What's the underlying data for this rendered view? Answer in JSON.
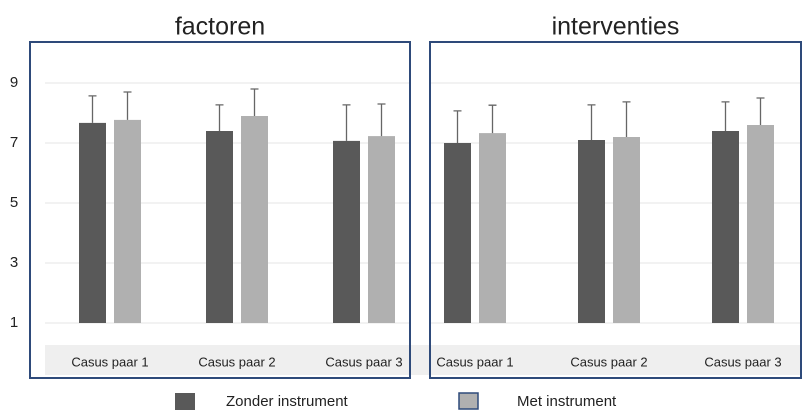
{
  "chart_data": [
    {
      "type": "bar",
      "title": "factoren",
      "categories": [
        "Casus paar 1",
        "Casus paar 2",
        "Casus paar 3"
      ],
      "series": [
        {
          "name": "Zonder instrument",
          "color": "#595959",
          "values": [
            7.67,
            7.4,
            7.07
          ],
          "errors": [
            0.9,
            0.87,
            1.2
          ]
        },
        {
          "name": "Met instrument",
          "color": "#b0b0b0",
          "values": [
            7.77,
            7.9,
            7.23
          ],
          "errors": [
            0.93,
            0.9,
            1.07
          ]
        }
      ],
      "ylim": [
        1,
        10
      ],
      "yticks": [
        1,
        3,
        5,
        7,
        9
      ],
      "grid": true
    },
    {
      "type": "bar",
      "title": "interventies",
      "categories": [
        "Casus paar 1",
        "Casus paar 2",
        "Casus paar 3"
      ],
      "series": [
        {
          "color": "#595959",
          "values": [
            7.0,
            7.1,
            7.4
          ],
          "errors": [
            1.07,
            1.17,
            0.97
          ]
        },
        {
          "color": "#b0b0b0",
          "values": [
            7.33,
            7.2,
            7.6
          ],
          "errors": [
            0.93,
            1.17,
            0.9
          ]
        }
      ],
      "ylim": [
        1,
        10
      ],
      "grid": true
    }
  ]
}
